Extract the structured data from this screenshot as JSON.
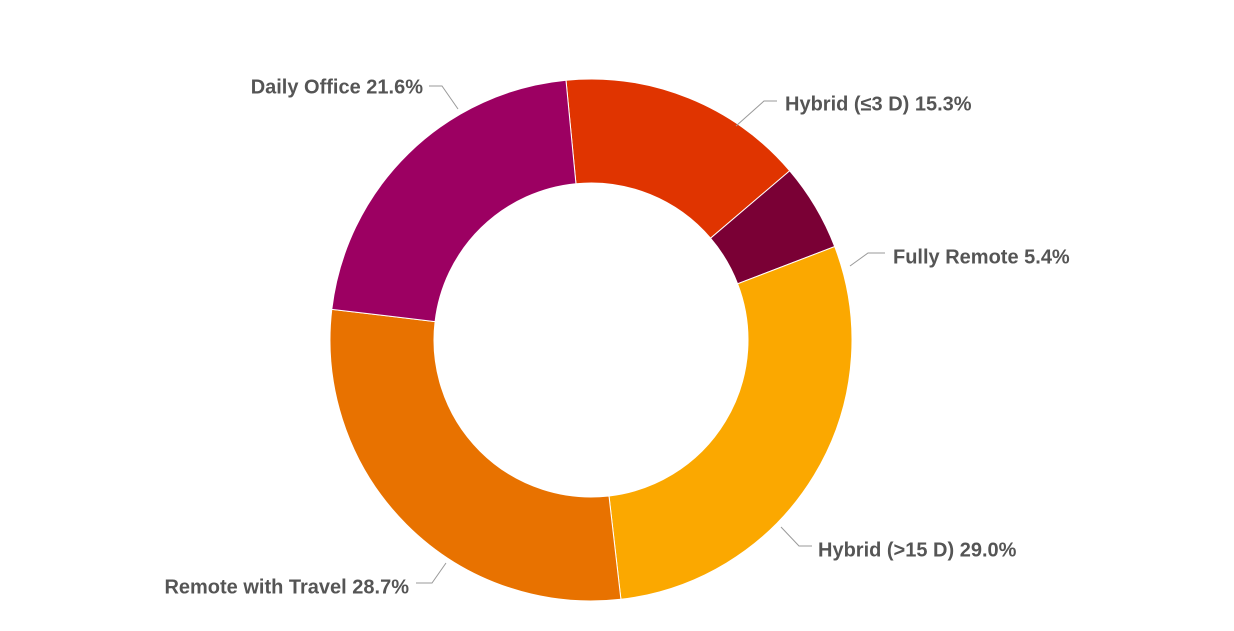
{
  "chart_data": {
    "type": "pie",
    "donut": true,
    "title": "",
    "slices": [
      {
        "label": "Hybrid (≤3 D)",
        "value": 15.3,
        "display": "Hybrid (≤3 D) 15.3%",
        "color": "#E03400"
      },
      {
        "label": "Fully Remote",
        "value": 5.4,
        "display": "Fully Remote 5.4%",
        "color": "#7A0035"
      },
      {
        "label": "Hybrid (>15 D)",
        "value": 29.0,
        "display": "Hybrid (>15 D) 29.0%",
        "color": "#FBA800"
      },
      {
        "label": "Remote with Travel",
        "value": 28.7,
        "display": "Remote with Travel 28.7%",
        "color": "#E87200"
      },
      {
        "label": "Daily Office",
        "value": 21.6,
        "display": "Daily Office 21.6%",
        "color": "#9C0062"
      }
    ],
    "legend": "none",
    "data_labels": "outside with leader lines"
  }
}
